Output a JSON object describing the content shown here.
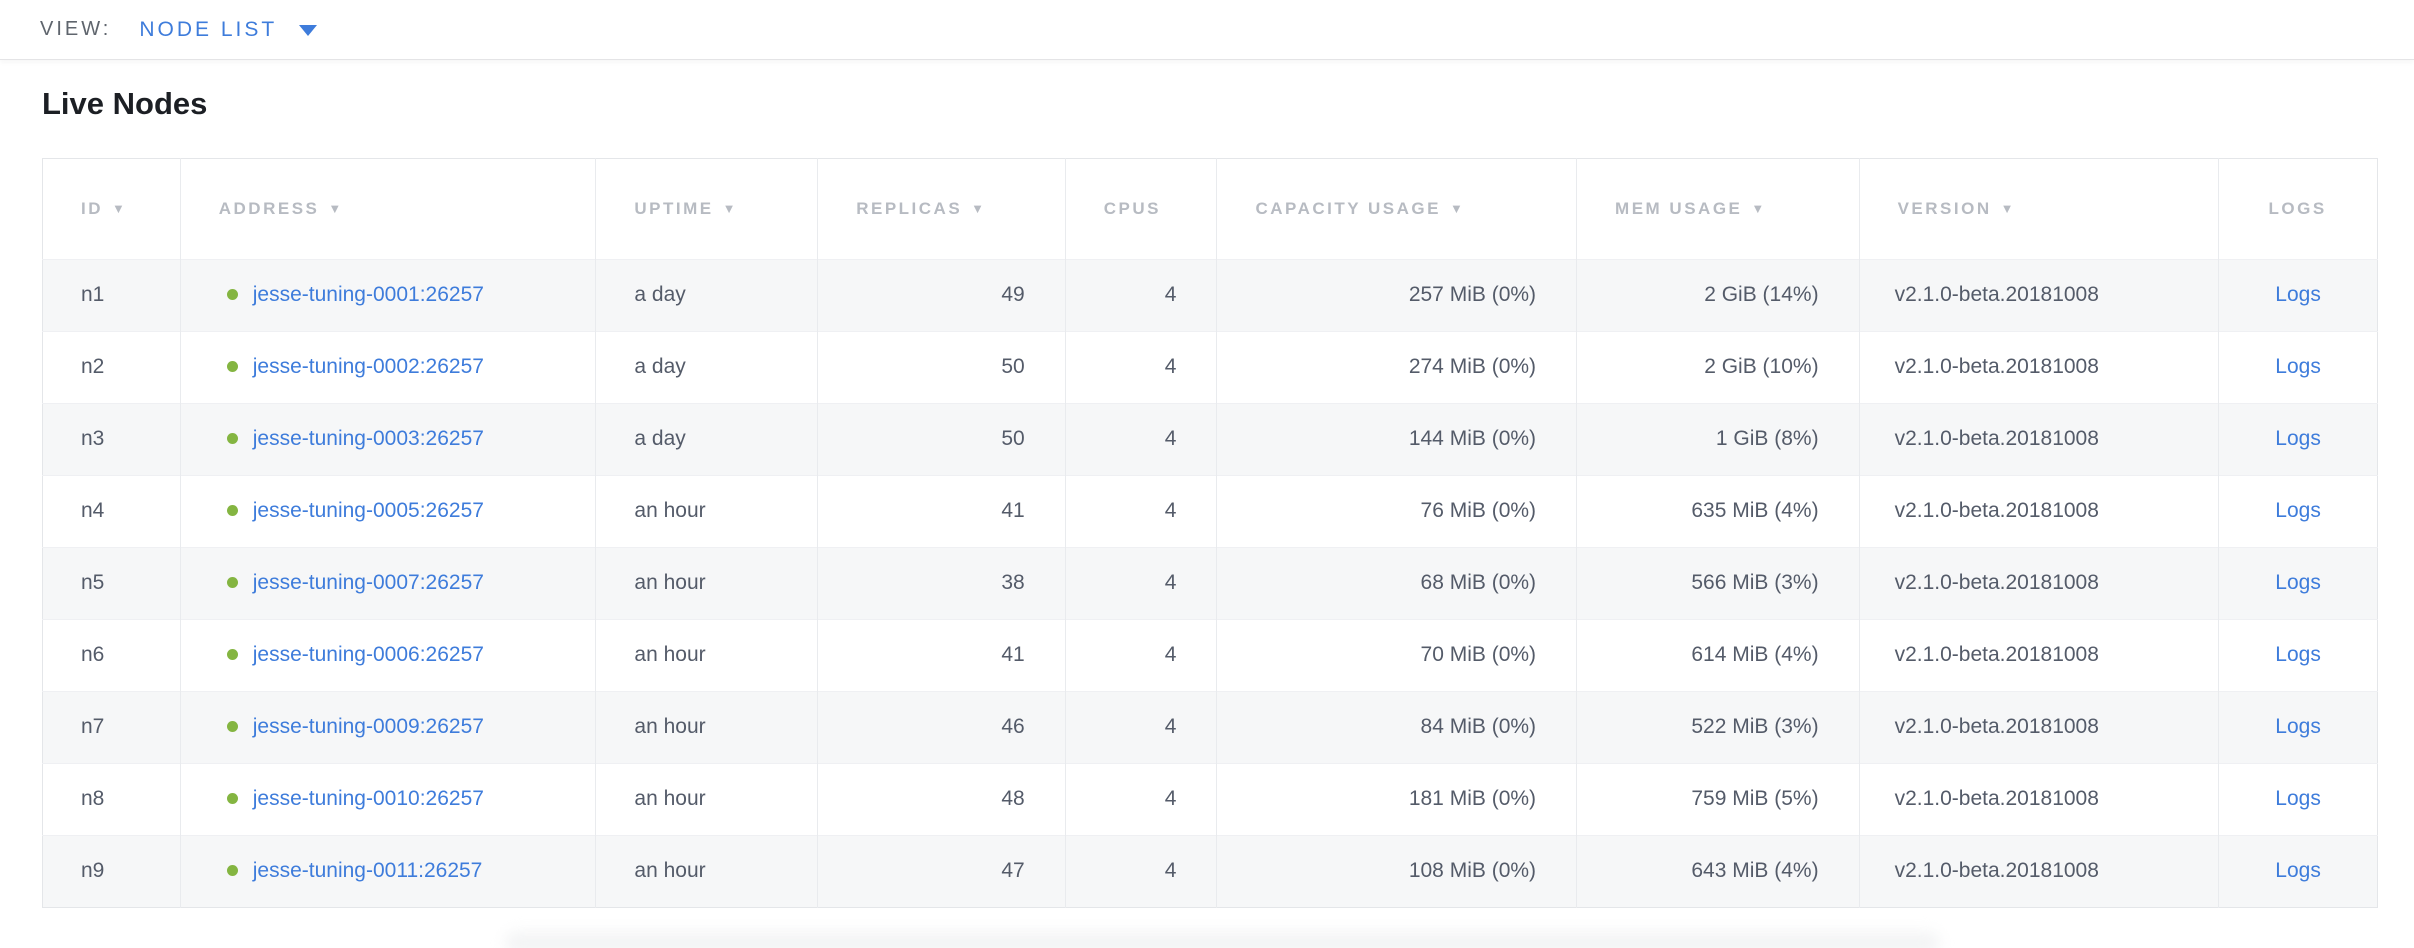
{
  "view_bar": {
    "label": "VIEW:",
    "selected": "NODE LIST"
  },
  "page": {
    "title": "Live Nodes"
  },
  "table": {
    "sort_icon": "▼",
    "columns": [
      {
        "key": "id",
        "label": "ID",
        "sortable": true,
        "align": "left"
      },
      {
        "key": "address",
        "label": "ADDRESS",
        "sortable": true,
        "align": "left"
      },
      {
        "key": "uptime",
        "label": "UPTIME",
        "sortable": true,
        "align": "left"
      },
      {
        "key": "replicas",
        "label": "REPLICAS",
        "sortable": true,
        "align": "right"
      },
      {
        "key": "cpus",
        "label": "CPUS",
        "sortable": false,
        "align": "right"
      },
      {
        "key": "capacity",
        "label": "CAPACITY USAGE",
        "sortable": true,
        "align": "right"
      },
      {
        "key": "mem",
        "label": "MEM USAGE",
        "sortable": true,
        "align": "right"
      },
      {
        "key": "version",
        "label": "VERSION",
        "sortable": true,
        "align": "left"
      },
      {
        "key": "logs",
        "label": "LOGS",
        "sortable": false,
        "align": "center"
      }
    ],
    "rows": [
      {
        "id": "n1",
        "address": "jesse-tuning-0001:26257",
        "status": "live",
        "uptime": "a day",
        "replicas": "49",
        "cpus": "4",
        "capacity": "257 MiB (0%)",
        "mem": "2 GiB (14%)",
        "version": "v2.1.0-beta.20181008",
        "logs": "Logs"
      },
      {
        "id": "n2",
        "address": "jesse-tuning-0002:26257",
        "status": "live",
        "uptime": "a day",
        "replicas": "50",
        "cpus": "4",
        "capacity": "274 MiB (0%)",
        "mem": "2 GiB (10%)",
        "version": "v2.1.0-beta.20181008",
        "logs": "Logs"
      },
      {
        "id": "n3",
        "address": "jesse-tuning-0003:26257",
        "status": "live",
        "uptime": "a day",
        "replicas": "50",
        "cpus": "4",
        "capacity": "144 MiB (0%)",
        "mem": "1 GiB (8%)",
        "version": "v2.1.0-beta.20181008",
        "logs": "Logs"
      },
      {
        "id": "n4",
        "address": "jesse-tuning-0005:26257",
        "status": "live",
        "uptime": "an hour",
        "replicas": "41",
        "cpus": "4",
        "capacity": "76 MiB (0%)",
        "mem": "635 MiB (4%)",
        "version": "v2.1.0-beta.20181008",
        "logs": "Logs"
      },
      {
        "id": "n5",
        "address": "jesse-tuning-0007:26257",
        "status": "live",
        "uptime": "an hour",
        "replicas": "38",
        "cpus": "4",
        "capacity": "68 MiB (0%)",
        "mem": "566 MiB (3%)",
        "version": "v2.1.0-beta.20181008",
        "logs": "Logs"
      },
      {
        "id": "n6",
        "address": "jesse-tuning-0006:26257",
        "status": "live",
        "uptime": "an hour",
        "replicas": "41",
        "cpus": "4",
        "capacity": "70 MiB (0%)",
        "mem": "614 MiB (4%)",
        "version": "v2.1.0-beta.20181008",
        "logs": "Logs"
      },
      {
        "id": "n7",
        "address": "jesse-tuning-0009:26257",
        "status": "live",
        "uptime": "an hour",
        "replicas": "46",
        "cpus": "4",
        "capacity": "84 MiB (0%)",
        "mem": "522 MiB (3%)",
        "version": "v2.1.0-beta.20181008",
        "logs": "Logs"
      },
      {
        "id": "n8",
        "address": "jesse-tuning-0010:26257",
        "status": "live",
        "uptime": "an hour",
        "replicas": "48",
        "cpus": "4",
        "capacity": "181 MiB (0%)",
        "mem": "759 MiB (5%)",
        "version": "v2.1.0-beta.20181008",
        "logs": "Logs"
      },
      {
        "id": "n9",
        "address": "jesse-tuning-0011:26257",
        "status": "live",
        "uptime": "an hour",
        "replicas": "47",
        "cpus": "4",
        "capacity": "108 MiB (0%)",
        "mem": "643 MiB (4%)",
        "version": "v2.1.0-beta.20181008",
        "logs": "Logs"
      }
    ]
  },
  "colors": {
    "accent_blue": "#3e7cdb",
    "live_green": "#84b541",
    "header_text": "#b7bbc2",
    "cell_text": "#545b69",
    "row_alt_bg": "#f6f7f8",
    "border": "#e7e9ec"
  }
}
